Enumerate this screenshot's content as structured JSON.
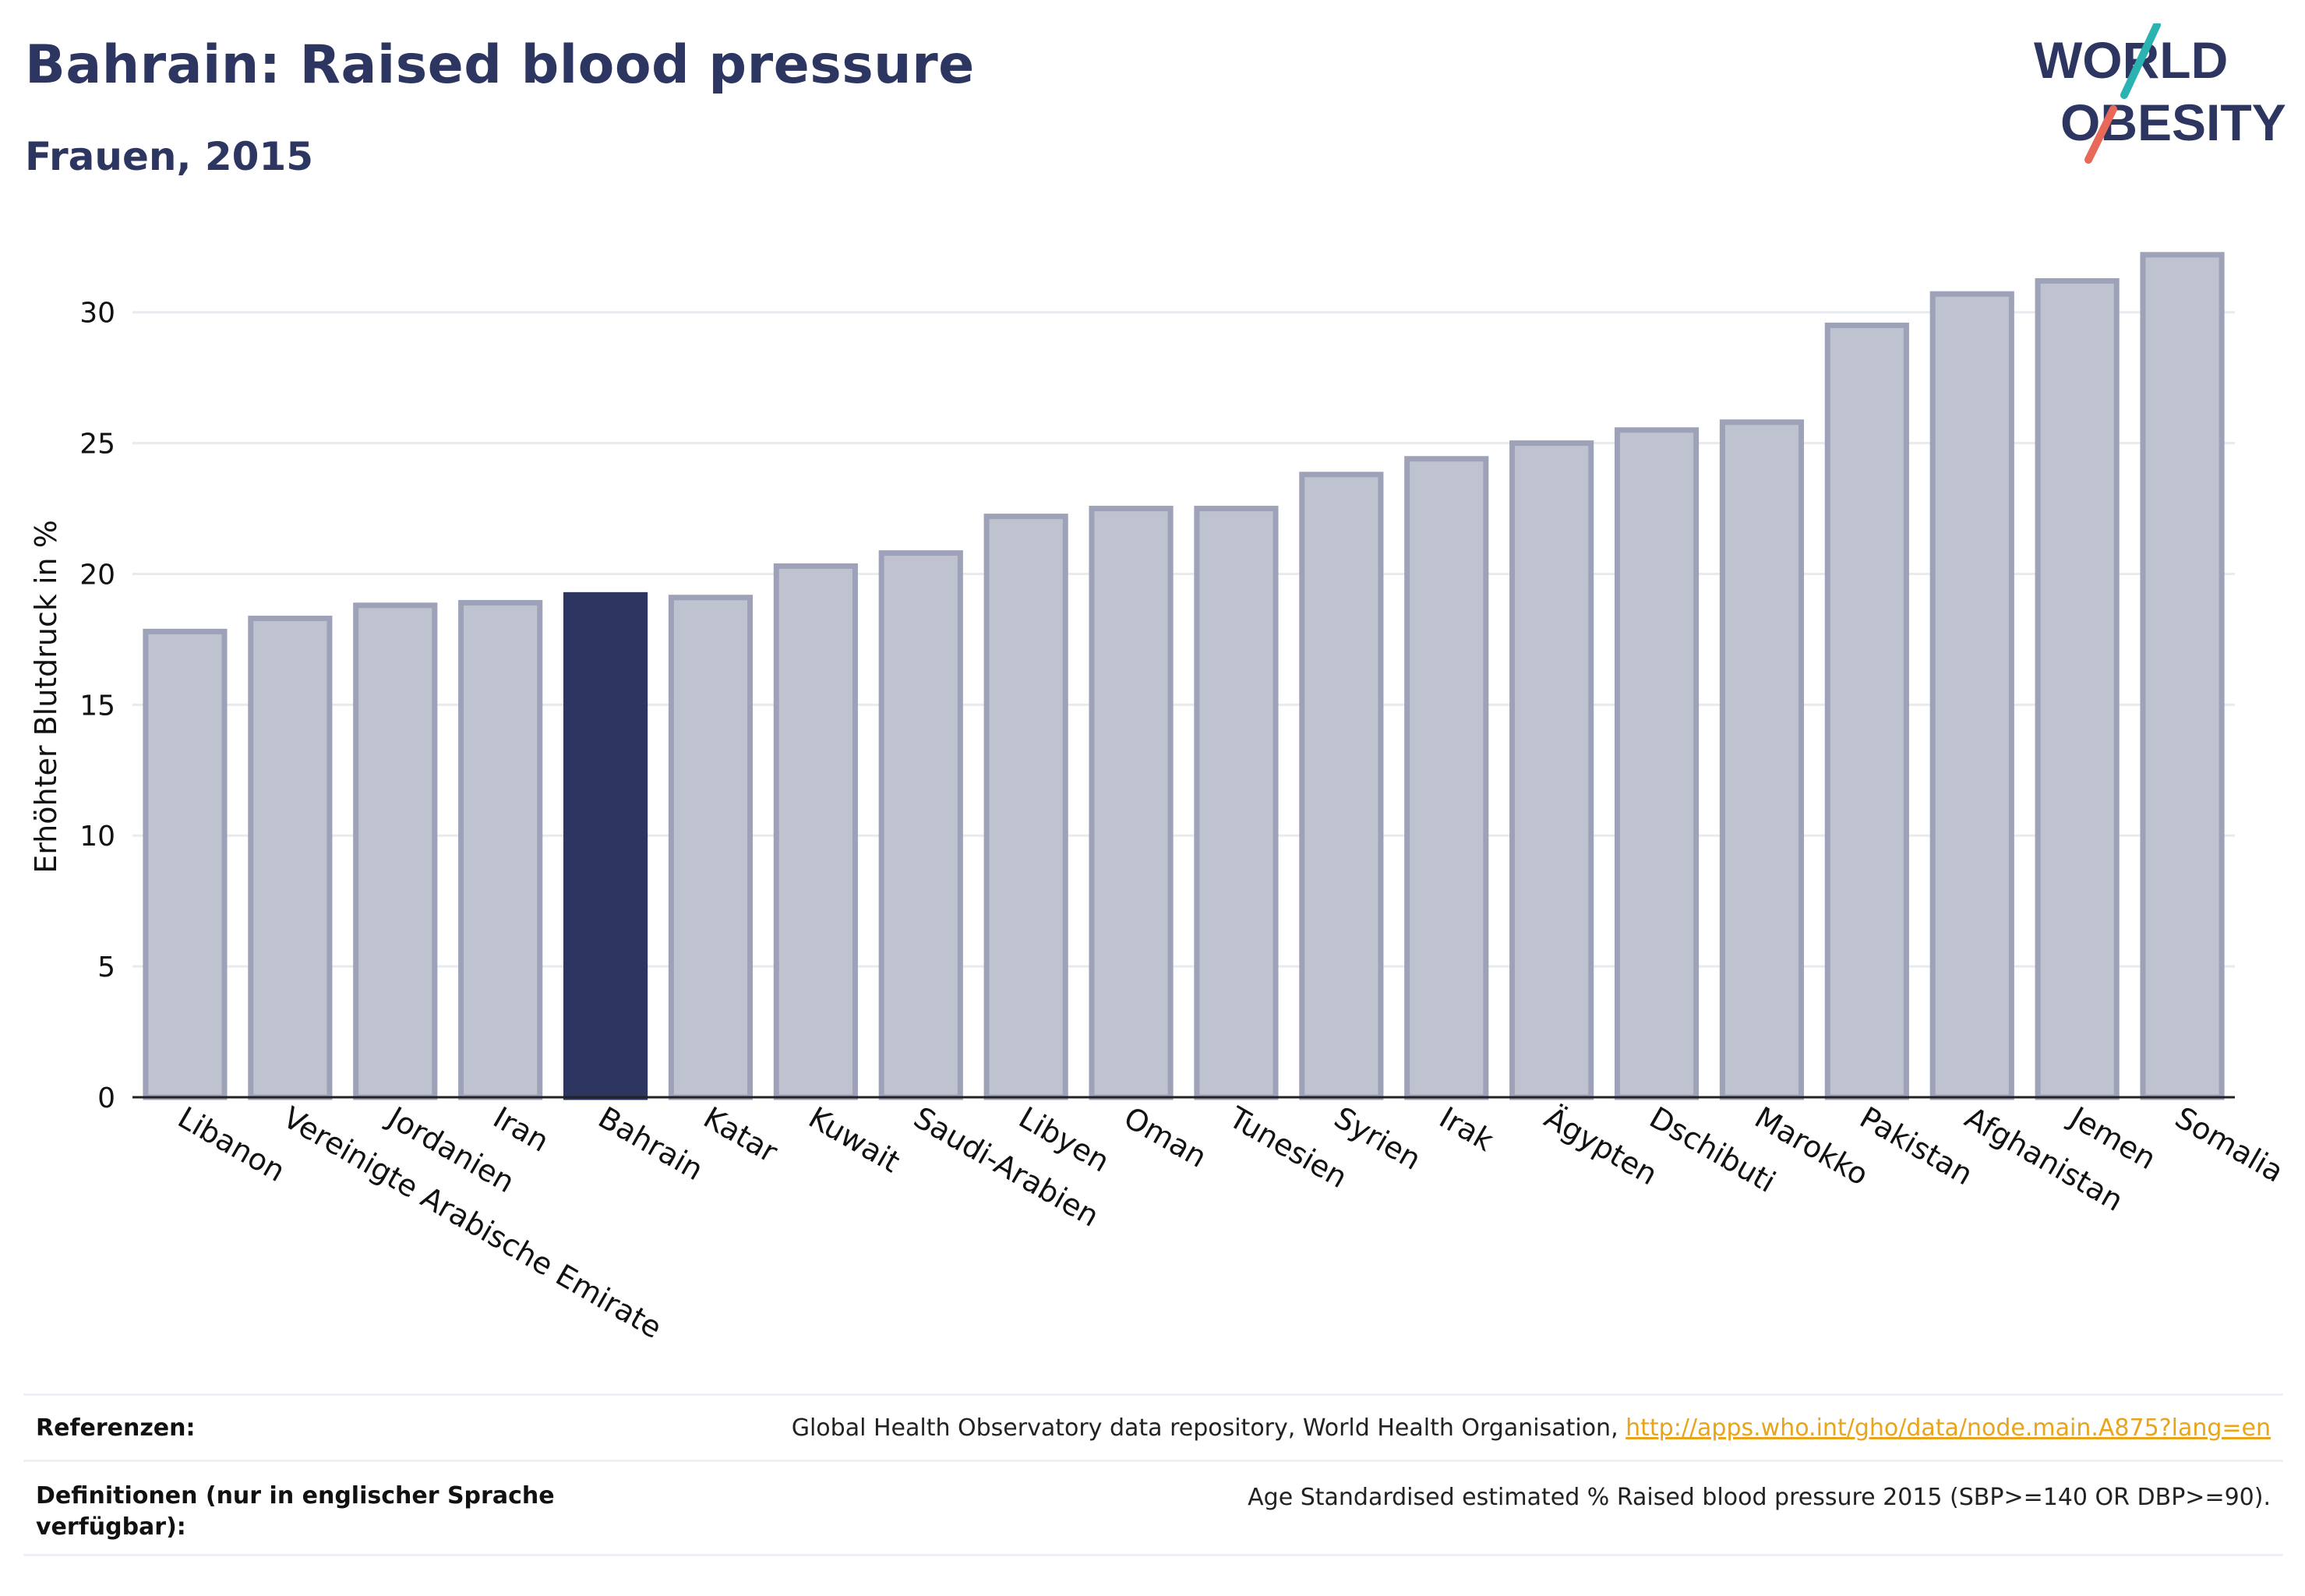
{
  "title": "Bahrain: Raised blood pressure",
  "subtitle": "Frauen, 2015",
  "logo": {
    "line1": "WORLD",
    "line2": "OBESITY"
  },
  "colors": {
    "highlight": "#2d3561",
    "bar_fill": "#bfc2cf",
    "bar_stroke": "#9ea2b8",
    "gridline": "#e8eaf0",
    "logo_teal": "#2ab3b1",
    "logo_coral": "#e8685a",
    "link": "#e8a41a"
  },
  "chart_data": {
    "type": "bar",
    "ylabel": "Erhöhter Blutdruck in %",
    "xlabel": "",
    "ylim": [
      0,
      33
    ],
    "yticks": [
      0,
      5,
      10,
      15,
      20,
      25,
      30
    ],
    "grid": true,
    "highlight": "Bahrain",
    "categories": [
      "Libanon",
      "Vereinigte Arabische Emirate",
      "Jordanien",
      "Iran",
      "Bahrain",
      "Katar",
      "Kuwait",
      "Saudi-Arabien",
      "Libyen",
      "Oman",
      "Tunesien",
      "Syrien",
      "Irak",
      "Ägypten",
      "Dschibuti",
      "Marokko",
      "Pakistan",
      "Afghanistan",
      "Jemen",
      "Somalia"
    ],
    "values": [
      17.8,
      18.3,
      18.8,
      18.9,
      19.2,
      19.1,
      20.3,
      20.8,
      22.2,
      22.5,
      22.5,
      23.8,
      24.4,
      25.0,
      25.5,
      25.8,
      29.5,
      30.7,
      31.2,
      32.2
    ]
  },
  "footer": {
    "references_label": "Referenzen:",
    "references_text": "Global Health Observatory data repository, World Health Organisation, ",
    "references_link": "http://apps.who.int/gho/data/node.main.A875?lang=en",
    "definitions_label": "Definitionen (nur in englischer Sprache verfügbar):",
    "definitions_text": "Age Standardised estimated % Raised blood pressure 2015 (SBP>=140 OR DBP>=90)."
  }
}
